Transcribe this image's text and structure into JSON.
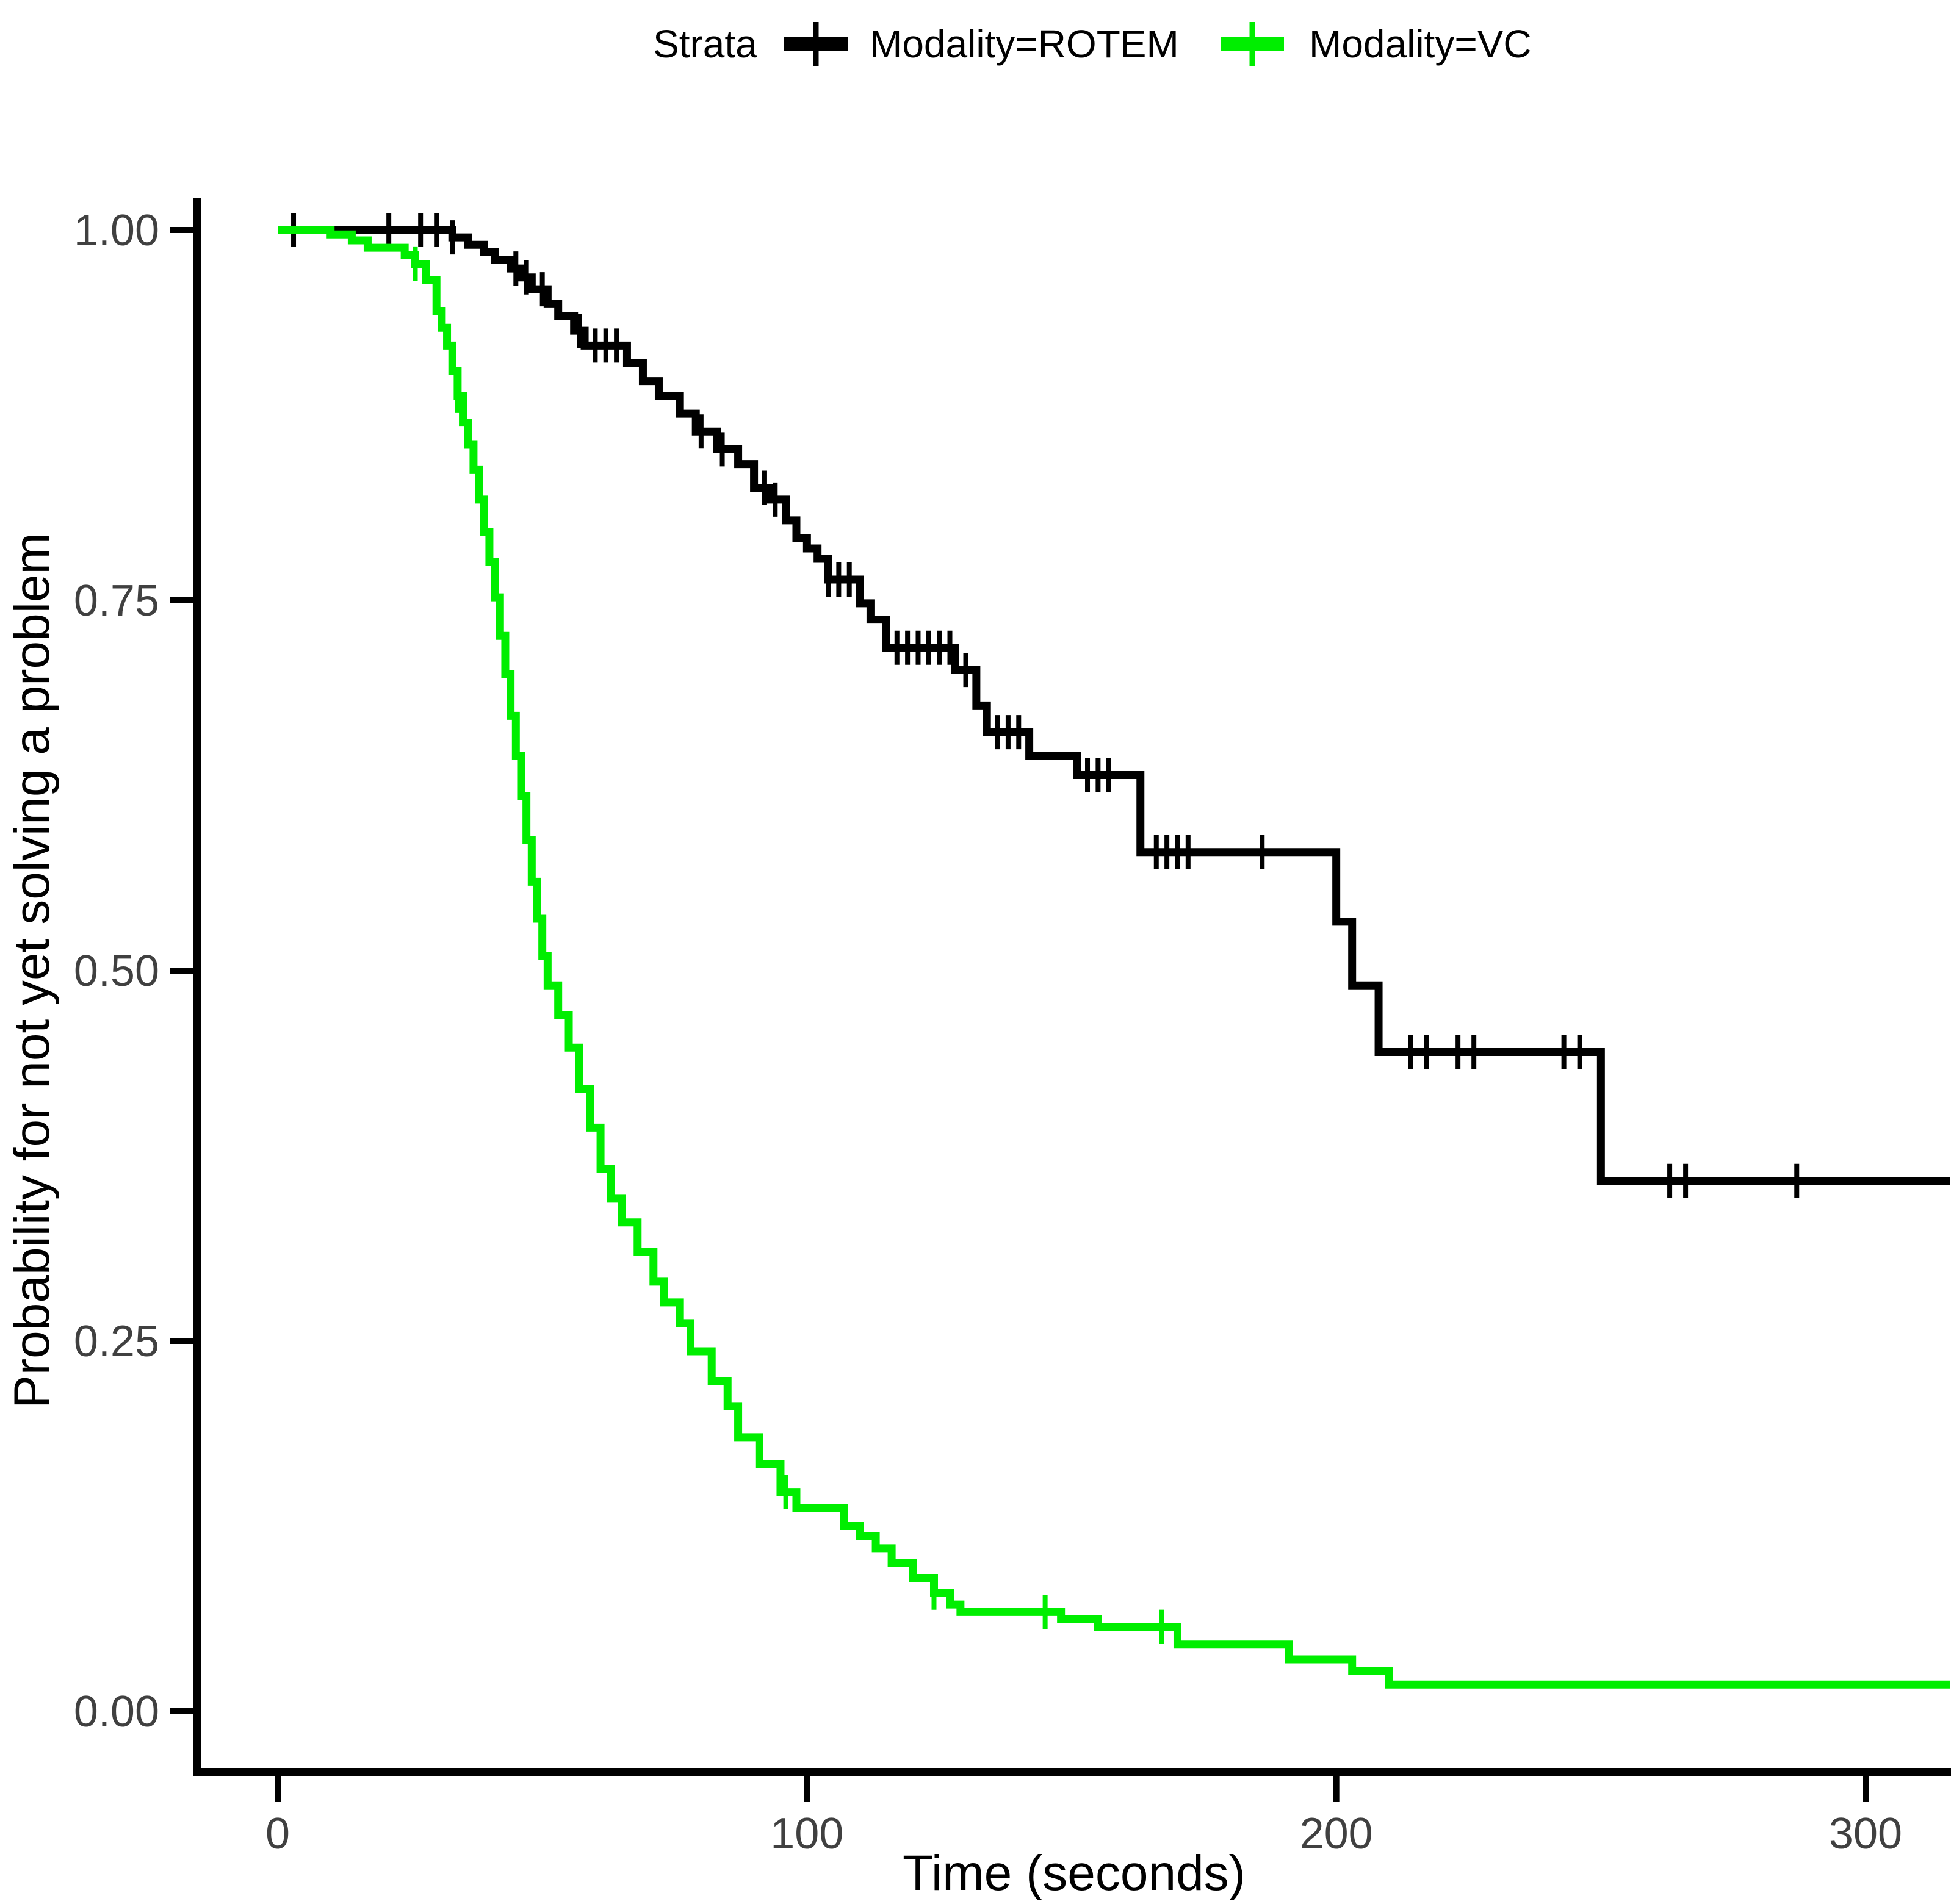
{
  "figure": {
    "background": "#ffffff",
    "tick_label_color": "#404040",
    "axis_color": "#000000"
  },
  "legend": {
    "title": "Strata",
    "items": [
      {
        "label": "Modality=ROTEM",
        "color": "#000000"
      },
      {
        "label": "Modality=VC",
        "color": "#00EE00"
      }
    ]
  },
  "chart_data": {
    "type": "line",
    "subtype": "kaplan-meier-step",
    "title": "",
    "xlabel": "Time (seconds)",
    "ylabel": "Probability for not yet solving a problem",
    "xlim": [
      0,
      316
    ],
    "ylim": [
      0,
      1
    ],
    "grid": false,
    "legend_position": "top",
    "x_ticks": [
      {
        "value": 0,
        "label": "0"
      },
      {
        "value": 100,
        "label": "100"
      },
      {
        "value": 200,
        "label": "200"
      },
      {
        "value": 300,
        "label": "300"
      }
    ],
    "y_ticks": [
      {
        "value": 0.0,
        "label": "0.00"
      },
      {
        "value": 0.25,
        "label": "0.25"
      },
      {
        "value": 0.5,
        "label": "0.50"
      },
      {
        "value": 0.75,
        "label": "0.75"
      },
      {
        "value": 1.0,
        "label": "1.00"
      }
    ],
    "series": [
      {
        "name": "Modality=ROTEM",
        "color": "#000000",
        "points": [
          [
            0,
            1.0
          ],
          [
            33,
            0.995
          ],
          [
            36,
            0.99
          ],
          [
            39,
            0.985
          ],
          [
            41,
            0.98
          ],
          [
            44,
            0.974
          ],
          [
            46,
            0.968
          ],
          [
            48,
            0.96
          ],
          [
            51,
            0.95
          ],
          [
            53,
            0.942
          ],
          [
            56,
            0.932
          ],
          [
            58,
            0.922
          ],
          [
            66,
            0.91
          ],
          [
            69,
            0.898
          ],
          [
            72,
            0.888
          ],
          [
            76,
            0.876
          ],
          [
            79,
            0.864
          ],
          [
            83,
            0.852
          ],
          [
            87,
            0.842
          ],
          [
            90,
            0.826
          ],
          [
            93,
            0.818
          ],
          [
            96,
            0.804
          ],
          [
            98,
            0.792
          ],
          [
            100,
            0.785
          ],
          [
            102,
            0.778
          ],
          [
            104,
            0.764
          ],
          [
            110,
            0.748
          ],
          [
            112,
            0.737
          ],
          [
            115,
            0.718
          ],
          [
            128,
            0.703
          ],
          [
            132,
            0.679
          ],
          [
            134,
            0.661
          ],
          [
            142,
            0.645
          ],
          [
            151,
            0.632
          ],
          [
            163,
            0.58
          ],
          [
            200,
            0.533
          ],
          [
            203,
            0.49
          ],
          [
            208,
            0.445
          ],
          [
            250,
            0.358
          ]
        ],
        "censor_times": [
          3,
          21,
          27,
          30,
          33,
          45,
          47,
          50,
          57,
          60,
          62,
          64,
          80,
          84,
          92,
          94,
          104,
          106,
          108,
          117,
          119,
          121,
          123,
          125,
          127,
          130,
          136,
          138,
          140,
          153,
          155,
          157,
          166,
          168,
          170,
          172,
          186,
          214,
          217,
          223,
          226,
          243,
          246,
          263,
          266,
          287
        ]
      },
      {
        "name": "Modality=VC",
        "color": "#00EE00",
        "points": [
          [
            0,
            1.0
          ],
          [
            10,
            0.997
          ],
          [
            14,
            0.993
          ],
          [
            17,
            0.988
          ],
          [
            24,
            0.983
          ],
          [
            26,
            0.977
          ],
          [
            28,
            0.966
          ],
          [
            30,
            0.945
          ],
          [
            31,
            0.934
          ],
          [
            32,
            0.922
          ],
          [
            33,
            0.905
          ],
          [
            34,
            0.888
          ],
          [
            35,
            0.87
          ],
          [
            36,
            0.855
          ],
          [
            37,
            0.838
          ],
          [
            38,
            0.818
          ],
          [
            39,
            0.796
          ],
          [
            40,
            0.776
          ],
          [
            41,
            0.752
          ],
          [
            42,
            0.726
          ],
          [
            43,
            0.7
          ],
          [
            44,
            0.672
          ],
          [
            45,
            0.645
          ],
          [
            46,
            0.618
          ],
          [
            47,
            0.588
          ],
          [
            48,
            0.56
          ],
          [
            49,
            0.535
          ],
          [
            50,
            0.51
          ],
          [
            51,
            0.49
          ],
          [
            53,
            0.47
          ],
          [
            55,
            0.448
          ],
          [
            57,
            0.42
          ],
          [
            59,
            0.394
          ],
          [
            61,
            0.366
          ],
          [
            63,
            0.346
          ],
          [
            65,
            0.33
          ],
          [
            68,
            0.31
          ],
          [
            71,
            0.29
          ],
          [
            73,
            0.276
          ],
          [
            76,
            0.262
          ],
          [
            78,
            0.243
          ],
          [
            82,
            0.223
          ],
          [
            85,
            0.206
          ],
          [
            87,
            0.185
          ],
          [
            91,
            0.167
          ],
          [
            95,
            0.148
          ],
          [
            98,
            0.137
          ],
          [
            107,
            0.125
          ],
          [
            110,
            0.118
          ],
          [
            113,
            0.11
          ],
          [
            116,
            0.1
          ],
          [
            120,
            0.09
          ],
          [
            124,
            0.08
          ],
          [
            127,
            0.072
          ],
          [
            129,
            0.067
          ],
          [
            148,
            0.062
          ],
          [
            155,
            0.057
          ],
          [
            170,
            0.045
          ],
          [
            191,
            0.035
          ],
          [
            203,
            0.027
          ],
          [
            210,
            0.018
          ]
        ],
        "censor_times": [
          26,
          34,
          96,
          124,
          145,
          167
        ]
      }
    ]
  }
}
